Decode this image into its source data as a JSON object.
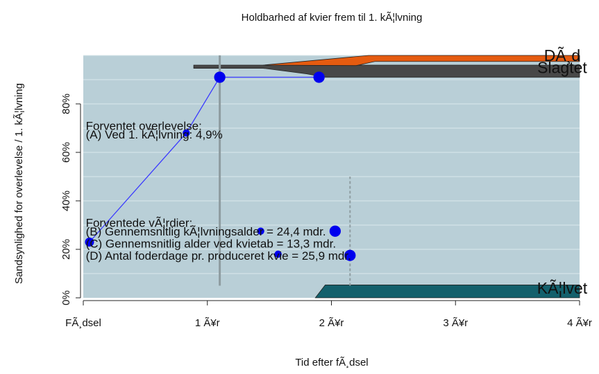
{
  "chart_data": {
    "type": "area",
    "title": "Holdbarhed af kvier frem til 1. kÃ¦lvning",
    "xlabel": "Tid efter fÃ¸dsel",
    "ylabel": "Sandsynlighed for overlevelse / 1. kÃ¦lvning",
    "xlim": [
      0,
      4
    ],
    "ylim": [
      0,
      1
    ],
    "x_ticks": [
      {
        "value": 0,
        "label": "FÃ¸dsel"
      },
      {
        "value": 1,
        "label": "1 Ã¥r"
      },
      {
        "value": 2,
        "label": "2 Ã¥r"
      },
      {
        "value": 3,
        "label": "3 Ã¥r"
      },
      {
        "value": 4,
        "label": "4 Ã¥r"
      }
    ],
    "y_ticks": [
      {
        "value": 0,
        "label": "0%"
      },
      {
        "value": 0.2,
        "label": "20%"
      },
      {
        "value": 0.4,
        "label": "40%"
      },
      {
        "value": 0.6,
        "label": "60%"
      },
      {
        "value": 0.8,
        "label": "80%"
      }
    ],
    "background_color": "#b9cfd7",
    "grid_color": "#dce8ec",
    "line_color": "#3a3aff",
    "point_color": "#0000ee",
    "areas": [
      {
        "label": "KÃ¦lvet",
        "color": "#13606c",
        "points": [
          [
            1.87,
            0
          ],
          [
            1.95,
            0.053
          ],
          [
            4,
            0.053
          ],
          [
            4,
            0
          ]
        ]
      },
      {
        "label": "Slagtet",
        "color": "#484848",
        "points": [
          [
            0.89,
            0.947
          ],
          [
            1.45,
            0.947
          ],
          [
            1.8,
            0.924
          ],
          [
            1.95,
            0.91
          ],
          [
            4,
            0.91
          ],
          [
            4,
            0.96
          ],
          [
            1.4,
            0.96
          ],
          [
            0.89,
            0.96
          ]
        ]
      },
      {
        "label": "DÃ¸d",
        "color": "#e55b10",
        "points": [
          [
            1.45,
            0.96
          ],
          [
            2.2,
            0.958
          ],
          [
            2.35,
            0.975
          ],
          [
            4,
            0.975
          ],
          [
            4,
            1.0
          ],
          [
            2.3,
            1.0
          ],
          [
            1.45,
            0.96
          ]
        ]
      }
    ],
    "area_labels": [
      {
        "text": "DÃ¸d",
        "x": 3.86,
        "y": 1.0
      },
      {
        "text": "Slagtet",
        "x": 3.86,
        "y": 0.95
      },
      {
        "text": "KÃ¦lvet",
        "x": 3.86,
        "y": 0.04
      }
    ],
    "line_points": [
      [
        0.05,
        0.23
      ],
      [
        0.83,
        0.68
      ],
      [
        1.1,
        0.91
      ],
      [
        1.9,
        0.91
      ]
    ],
    "line_point_sizes": [
      1,
      0.8,
      1.25,
      1.25
    ],
    "vertical_lines": [
      {
        "x": 1.1,
        "y1": 0.05,
        "y2": 1.0,
        "style": "solid",
        "color": "#8e9ca0"
      },
      {
        "x": 2.15,
        "y1": 0.05,
        "y2": 0.5,
        "style": "dashed",
        "color": "#8e9ca0"
      }
    ],
    "extra_points": [
      {
        "x": 1.43,
        "y": 0.275,
        "size": 0.8
      },
      {
        "x": 2.03,
        "y": 0.275,
        "size": 1.25
      },
      {
        "x": 1.57,
        "y": 0.18,
        "size": 0.8
      },
      {
        "x": 2.15,
        "y": 0.175,
        "size": 1.25
      }
    ],
    "annotations": [
      {
        "text": "Forventet overlevelse:",
        "x": 0.02,
        "y": 0.71
      },
      {
        "text": "(A) Ved 1. kÃ¦lvning: 4,9%",
        "x": 0.02,
        "y": 0.675
      },
      {
        "text": "Forventede vÃ¦rdier:",
        "x": 0.02,
        "y": 0.31
      },
      {
        "text": "(B) Gennemsnitlig kÃ¦lvningsalder = 24,4 mdr.",
        "x": 0.02,
        "y": 0.275
      },
      {
        "text": "(C) Gennemsnitlig alder ved kvietab = 13,3 mdr.",
        "x": 0.02,
        "y": 0.225
      },
      {
        "text": "(D) Antal foderdage pr. produceret kvie = 25,9 mdr.",
        "x": 0.02,
        "y": 0.175
      }
    ]
  }
}
